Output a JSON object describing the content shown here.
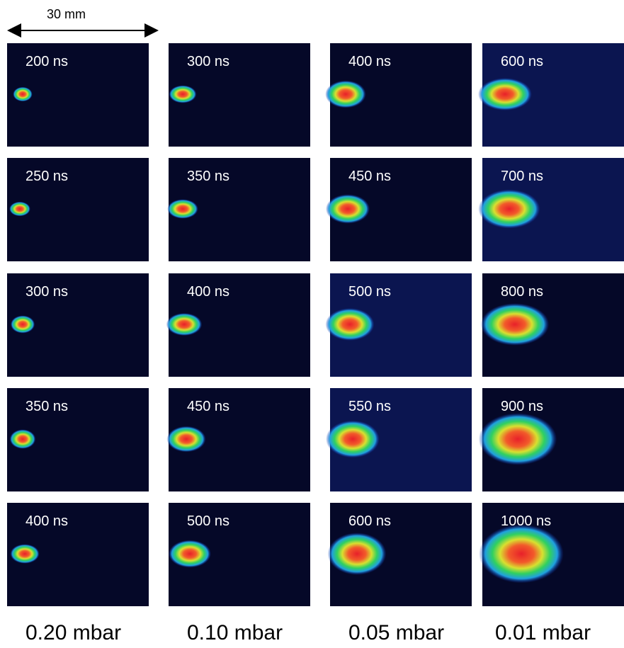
{
  "scale_label": "30 mm",
  "columns": [
    {
      "pressure": "0.20 mbar",
      "times": [
        "200 ns",
        "250 ns",
        "300 ns",
        "350 ns",
        "400 ns"
      ]
    },
    {
      "pressure": "0.10 mbar",
      "times": [
        "300 ns",
        "350 ns",
        "400 ns",
        "450 ns",
        "500 ns"
      ]
    },
    {
      "pressure": "0.05 mbar",
      "times": [
        "400 ns",
        "450 ns",
        "500 ns",
        "550 ns",
        "600 ns"
      ]
    },
    {
      "pressure": "0.01 mbar",
      "times": [
        "600 ns",
        "700 ns",
        "800 ns",
        "900 ns",
        "1000 ns"
      ]
    }
  ]
}
